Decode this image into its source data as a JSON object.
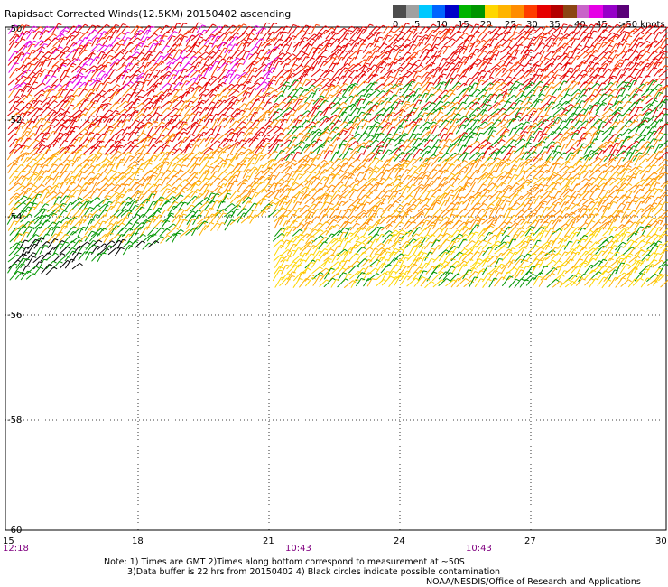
{
  "title": "Rapidsact Corrected Winds(12.5KM) 20150402 ascending",
  "legend": {
    "colors": [
      "#4d4d4d",
      "#a0a0a0",
      "#00c8ff",
      "#0064ff",
      "#0000c8",
      "#00b400",
      "#009600",
      "#ffd700",
      "#ffb400",
      "#ff8c00",
      "#ff3c00",
      "#e60000",
      "#b40000",
      "#8b4513",
      "#c864c8",
      "#e600e6",
      "#9600c8",
      "#5a0078"
    ],
    "labels": [
      "0",
      "5",
      "10",
      "15",
      "20",
      "25",
      "30",
      "35",
      "40",
      "45",
      ">50 knots"
    ]
  },
  "map": {
    "lat_labels": [
      "-50",
      "-52",
      "-54",
      "-56",
      "-58",
      "-60"
    ],
    "lon_labels": [
      "15",
      "18",
      "21",
      "24",
      "27",
      "30"
    ],
    "time_labels": [
      "12:18",
      "10:43",
      "10:43"
    ]
  },
  "footer": {
    "line1": "Note: 1) Times are GMT 2)Times along bottom correspond to measurement at ~50S",
    "line2": "3)Data buffer is 22 hrs from 20150402 4) Black circles indicate possible contamination",
    "line3": "NOAA/NESDIS/Office of Research and Applications"
  }
}
